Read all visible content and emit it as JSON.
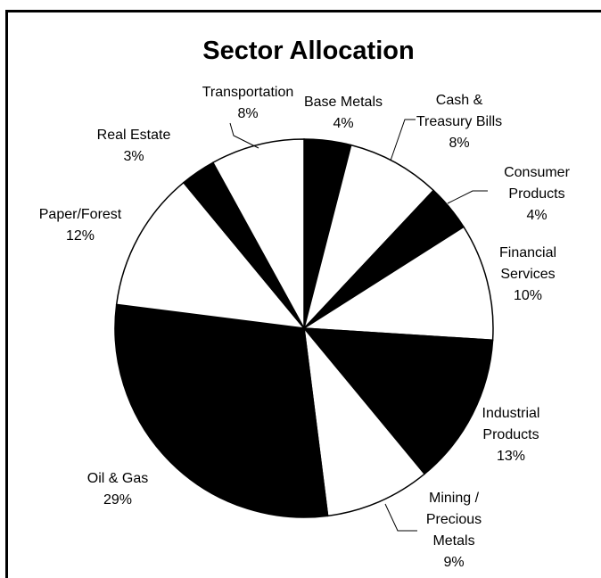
{
  "chart_data": {
    "type": "pie",
    "title": "Sector Allocation",
    "slices": [
      {
        "label": [
          "Base Metals"
        ],
        "value": 4,
        "pct": "4%",
        "fill": "#000000"
      },
      {
        "label": [
          "Cash &",
          "Treasury Bills"
        ],
        "value": 8,
        "pct": "8%",
        "fill": "#ffffff"
      },
      {
        "label": [
          "Consumer",
          "Products"
        ],
        "value": 4,
        "pct": "4%",
        "fill": "#000000"
      },
      {
        "label": [
          "Financial",
          "Services"
        ],
        "value": 10,
        "pct": "10%",
        "fill": "#ffffff"
      },
      {
        "label": [
          "Industrial",
          "Products"
        ],
        "value": 13,
        "pct": "13%",
        "fill": "#000000"
      },
      {
        "label": [
          "Mining /",
          "Precious",
          "Metals"
        ],
        "value": 9,
        "pct": "9%",
        "fill": "#ffffff"
      },
      {
        "label": [
          "Oil & Gas"
        ],
        "value": 29,
        "pct": "29%",
        "fill": "#000000"
      },
      {
        "label": [
          "Paper/Forest"
        ],
        "value": 12,
        "pct": "12%",
        "fill": "#ffffff"
      },
      {
        "label": [
          "Real Estate"
        ],
        "value": 3,
        "pct": "3%",
        "fill": "#000000"
      },
      {
        "label": [
          "Transportation"
        ],
        "value": 8,
        "pct": "8%",
        "fill": "#ffffff"
      }
    ],
    "colors": {
      "dark": "#000000",
      "light": "#ffffff",
      "border": "#000000"
    }
  }
}
